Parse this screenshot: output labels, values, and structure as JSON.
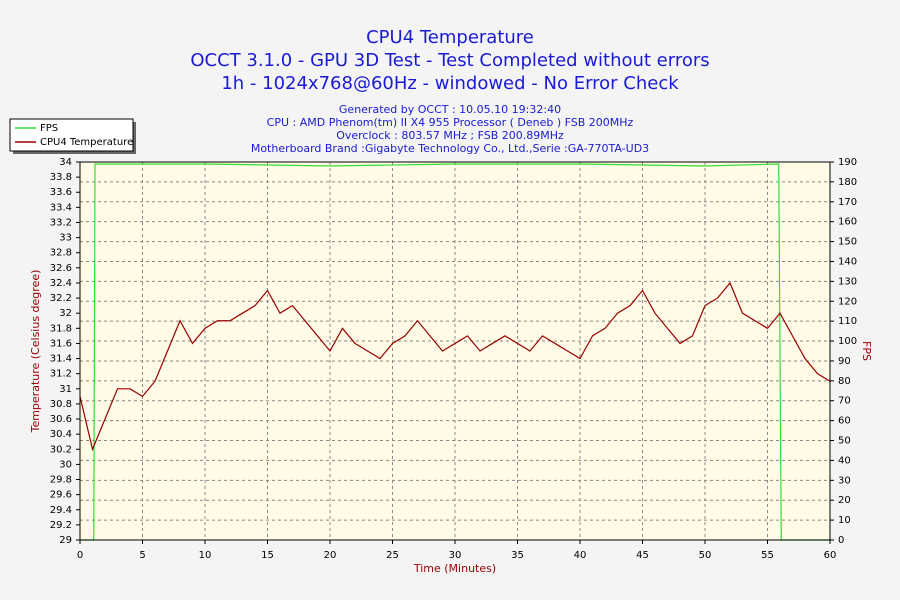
{
  "chart_data": {
    "type": "line",
    "title": [
      "CPU4 Temperature",
      "OCCT 3.1.0 - GPU 3D Test - Test Completed without errors",
      "1h - 1024x768@60Hz - windowed - No Error Check"
    ],
    "subtitle": [
      "Generated by OCCT : 10.05.10 19:32:40",
      "CPU : AMD Phenom(tm) II X4 955 Processor ( Deneb ) FSB 200MHz",
      "Overclock : 803.57 MHz ; FSB 200.89MHz",
      "Motherboard Brand :Gigabyte Technology Co., Ltd.,Serie :GA-770TA-UD3"
    ],
    "x_label": "Time (Minutes)",
    "y_label": "Temperature (Celsius degree)",
    "y2_label": "FPS",
    "xlim": [
      0,
      60
    ],
    "xticks": [
      0,
      5,
      10,
      15,
      20,
      25,
      30,
      35,
      40,
      45,
      50,
      55,
      60
    ],
    "ylim": [
      29,
      34
    ],
    "yticks": [
      29,
      29.2,
      29.4,
      29.6,
      29.8,
      30,
      30.2,
      30.4,
      30.6,
      30.8,
      31,
      31.2,
      31.4,
      31.6,
      31.8,
      32,
      32.2,
      32.4,
      32.6,
      32.8,
      33,
      33.2,
      33.4,
      33.6,
      33.8,
      34
    ],
    "y2lim": [
      0,
      190
    ],
    "y2ticks": [
      0,
      10,
      20,
      30,
      40,
      50,
      60,
      70,
      80,
      90,
      100,
      110,
      120,
      130,
      140,
      150,
      160,
      170,
      180,
      190
    ],
    "grid": true,
    "legend": "top-left",
    "series": [
      {
        "name": "FPS",
        "color": "#33dd33",
        "axis": "y2",
        "x": [
          0,
          1.1,
          1.2,
          10,
          20,
          30,
          40,
          50,
          55.9,
          56.1,
          60
        ],
        "values": [
          0,
          0,
          189,
          189,
          188,
          189,
          189,
          188,
          189,
          0,
          0
        ]
      },
      {
        "name": "CPU4 Temperature",
        "color": "#990000",
        "x": [
          0,
          1,
          2,
          3,
          4,
          5,
          6,
          7,
          8,
          9,
          10,
          11,
          12,
          13,
          14,
          15,
          16,
          17,
          18,
          19,
          20,
          21,
          22,
          23,
          24,
          25,
          26,
          27,
          28,
          29,
          30,
          31,
          32,
          33,
          34,
          35,
          36,
          37,
          38,
          39,
          40,
          41,
          42,
          43,
          44,
          45,
          46,
          47,
          48,
          49,
          50,
          51,
          52,
          53,
          54,
          55,
          56,
          57,
          58,
          59,
          60
        ],
        "values": [
          30.9,
          30.2,
          30.6,
          31.0,
          31.0,
          30.9,
          31.1,
          31.5,
          31.9,
          31.6,
          31.8,
          31.9,
          31.9,
          32.0,
          32.1,
          32.3,
          32.0,
          32.1,
          31.9,
          31.7,
          31.5,
          31.8,
          31.6,
          31.5,
          31.4,
          31.6,
          31.7,
          31.9,
          31.7,
          31.5,
          31.6,
          31.7,
          31.5,
          31.6,
          31.7,
          31.6,
          31.5,
          31.7,
          31.6,
          31.5,
          31.4,
          31.7,
          31.8,
          32.0,
          32.1,
          32.3,
          32.0,
          31.8,
          31.6,
          31.7,
          32.1,
          32.2,
          32.4,
          32.0,
          31.9,
          31.8,
          32.0,
          31.7,
          31.4,
          31.2,
          31.1
        ]
      }
    ]
  }
}
